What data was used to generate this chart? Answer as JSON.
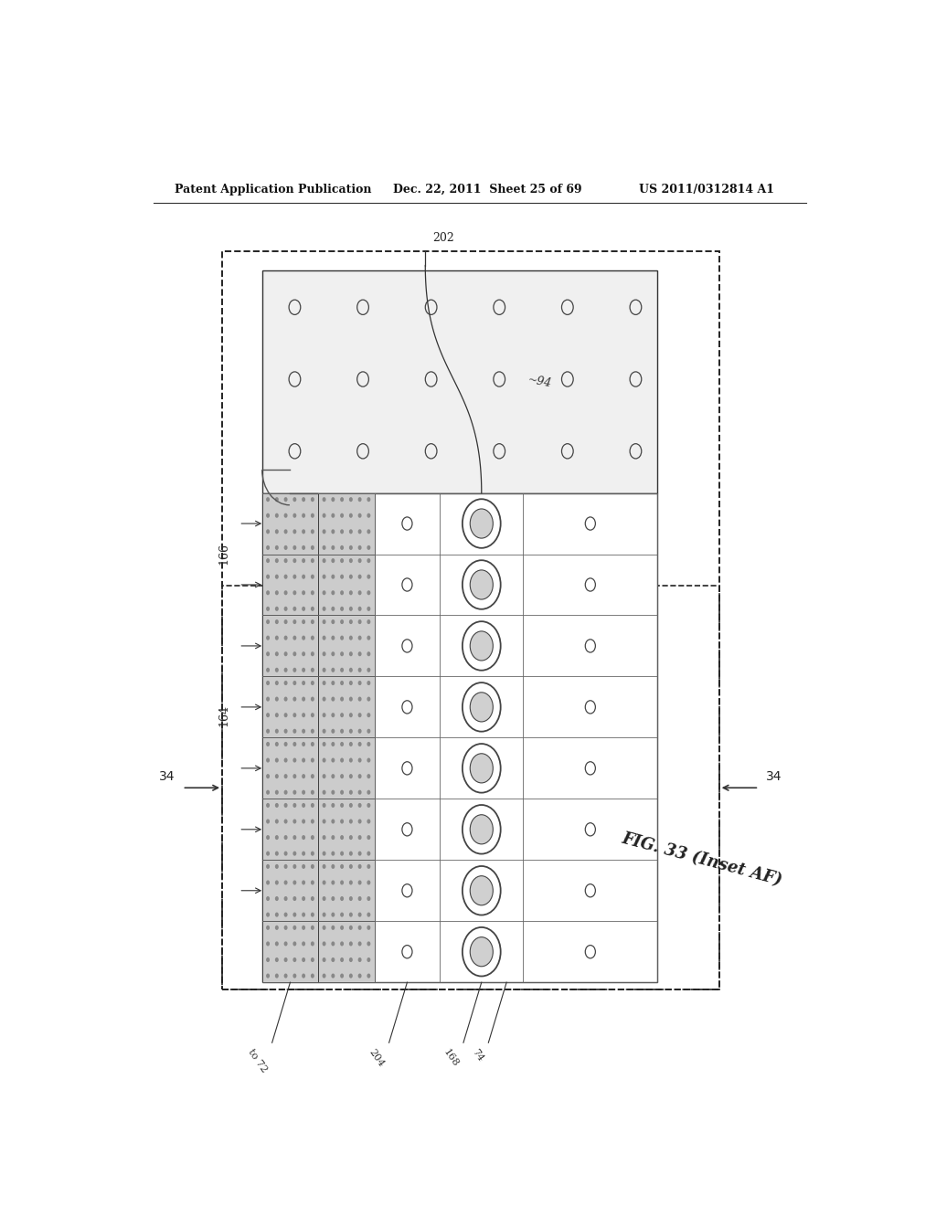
{
  "bg_color": "#ffffff",
  "header_text1": "Patent Application Publication",
  "header_text2": "Dec. 22, 2011  Sheet 25 of 69",
  "header_text3": "US 2011/0312814 A1",
  "fig_label": "FIG. 33 (Inset AF)",
  "label_202": "202",
  "label_94": "~94",
  "label_166": "166",
  "label_164": "164",
  "label_34_left": "34",
  "label_34_right": "34",
  "label_to72": "to 72",
  "label_204": "204",
  "label_168": "168",
  "label_74": "74"
}
